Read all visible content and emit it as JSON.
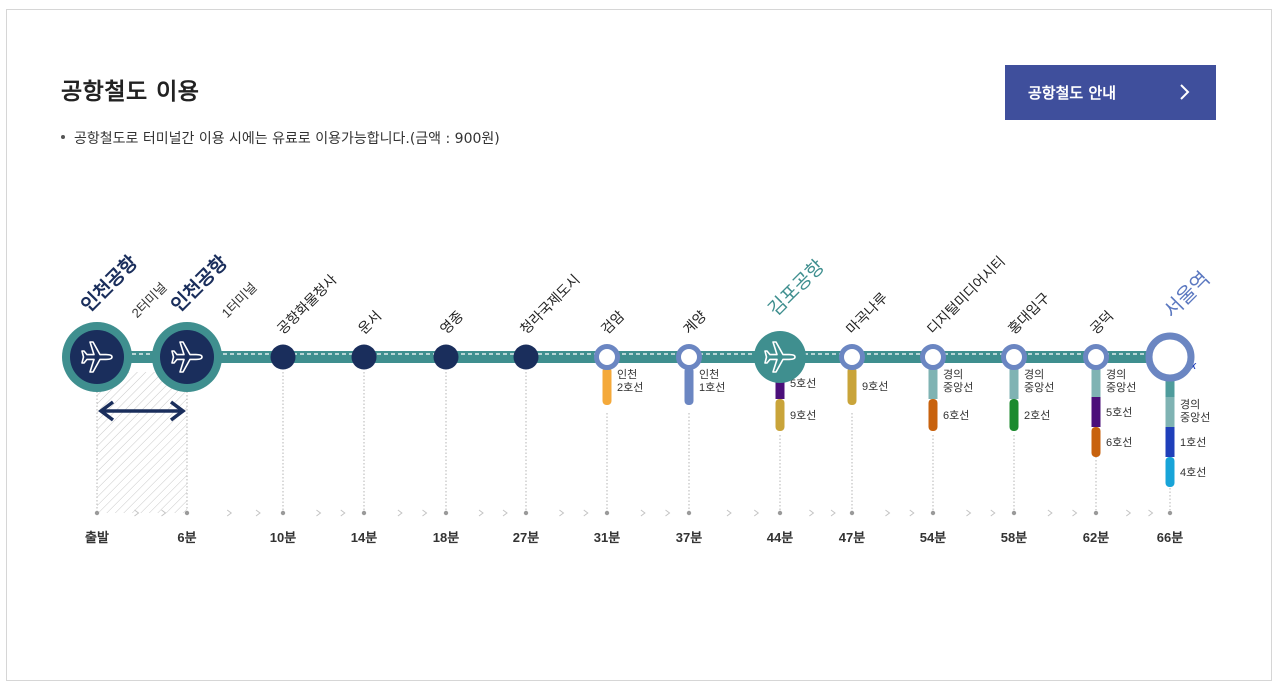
{
  "section": {
    "title": "공항철도 이용",
    "note": "공항철도로 터미널간 이용 시에는 유료로 이용가능합니다.(금액 : 900원)"
  },
  "guide_button": {
    "label": "공항철도 안내"
  },
  "colors": {
    "navy": "#1a2e5c",
    "teal": "#3f8f8f",
    "teal_light": "#9cc8c8",
    "ring_blue": "#6b86c2",
    "button": "#3f4f9c",
    "gimpo_text": "#3f8f8f",
    "seoul_text": "#5b78c0"
  },
  "stations": [
    {
      "id": "incheon-t2",
      "name": "인천공항",
      "sub": "2터미널",
      "time": "출발",
      "type": "airport-navy"
    },
    {
      "id": "incheon-t1",
      "name": "인천공항",
      "sub": "1터미널",
      "time": "6분",
      "type": "airport-navy"
    },
    {
      "id": "cargo",
      "name": "공항화물청사",
      "time": "10분",
      "type": "dot"
    },
    {
      "id": "unseo",
      "name": "운서",
      "time": "14분",
      "type": "dot"
    },
    {
      "id": "yeongjong",
      "name": "영종",
      "time": "18분",
      "type": "dot"
    },
    {
      "id": "cheongna",
      "name": "청라국제도시",
      "time": "27분",
      "type": "dot"
    },
    {
      "id": "geomam",
      "name": "검암",
      "time": "31분",
      "type": "ring",
      "transfers": [
        {
          "label": "인천\n2호선",
          "color": "#f4a93a"
        }
      ]
    },
    {
      "id": "gyeyang",
      "name": "계양",
      "time": "37분",
      "type": "ring",
      "transfers": [
        {
          "label": "인천\n1호선",
          "color": "#6b86c2"
        }
      ]
    },
    {
      "id": "gimpo",
      "name": "김포공항",
      "time": "44분",
      "type": "airport-teal",
      "transfers": [
        {
          "label": "5호선",
          "color": "#4b0f7a"
        },
        {
          "label": "9호선",
          "color": "#c9a43a"
        }
      ]
    },
    {
      "id": "magongnaru",
      "name": "마곡나루",
      "time": "47분",
      "type": "ring",
      "transfers": [
        {
          "label": "9호선",
          "color": "#c9a43a"
        }
      ]
    },
    {
      "id": "dmc",
      "name": "디지털미디어시티",
      "time": "54분",
      "type": "ring",
      "transfers": [
        {
          "label": "경의\n중앙선",
          "color": "#7fb3b3"
        },
        {
          "label": "6호선",
          "color": "#c8620e"
        }
      ]
    },
    {
      "id": "hongik",
      "name": "홍대입구",
      "time": "58분",
      "type": "ring",
      "transfers": [
        {
          "label": "경의\n중앙선",
          "color": "#7fb3b3"
        },
        {
          "label": "2호선",
          "color": "#1b8a2e"
        }
      ]
    },
    {
      "id": "gongdeok",
      "name": "공덕",
      "time": "62분",
      "type": "ring",
      "transfers": [
        {
          "label": "경의\n중앙선",
          "color": "#7fb3b3"
        },
        {
          "label": "5호선",
          "color": "#4b0f7a"
        },
        {
          "label": "6호선",
          "color": "#c8620e"
        }
      ]
    },
    {
      "id": "seoul",
      "name": "서울역",
      "time": "66분",
      "type": "ring-big",
      "transfers": [
        {
          "label": "KTX",
          "color": "#4f9c9c"
        },
        {
          "label": "경의\n중앙선",
          "color": "#7fb3b3"
        },
        {
          "label": "1호선",
          "color": "#1f3fba"
        },
        {
          "label": "4호선",
          "color": "#18a4d8"
        }
      ]
    }
  ]
}
